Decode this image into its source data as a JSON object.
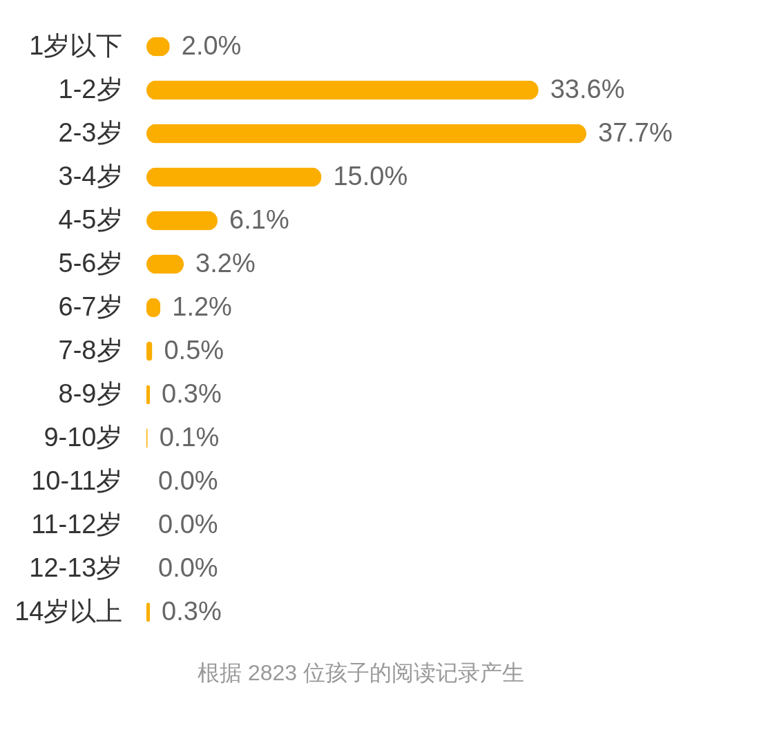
{
  "chart_data": {
    "type": "bar",
    "orientation": "horizontal",
    "tick_labels": "y",
    "categories": [
      "1岁以下",
      "1-2岁",
      "2-3岁",
      "3-4岁",
      "4-5岁",
      "5-6岁",
      "6-7岁",
      "7-8岁",
      "8-9岁",
      "9-10岁",
      "10-11岁",
      "11-12岁",
      "12-13岁",
      "14岁以上"
    ],
    "values": [
      2.0,
      33.6,
      37.7,
      15.0,
      6.1,
      3.2,
      1.2,
      0.5,
      0.3,
      0.1,
      0.0,
      0.0,
      0.0,
      0.3
    ],
    "color": "#fbae00",
    "value_labels": [
      "2.0%",
      "33.6%",
      "37.7%",
      "15.0%",
      "6.1%",
      "3.2%",
      "1.2%",
      "0.5%",
      "0.3%",
      "0.1%",
      "0.0%",
      "0.0%",
      "0.0%",
      "0.3%"
    ],
    "annotations": [
      "根据 2823 位孩子的阅读记录产生"
    ]
  }
}
